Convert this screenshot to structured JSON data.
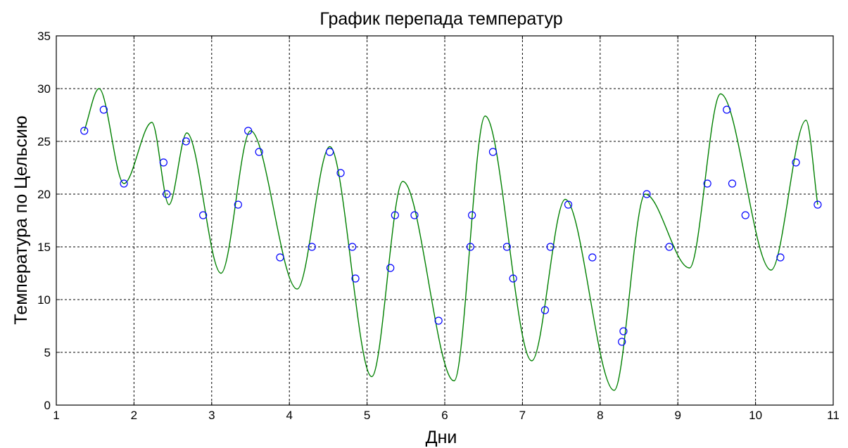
{
  "chart_data": {
    "type": "line",
    "title": "График перепада температур",
    "xlabel": "Дни",
    "ylabel": "Температура по Цельсию",
    "xlim": [
      1,
      11
    ],
    "ylim": [
      0,
      35
    ],
    "xticks": [
      1,
      2,
      3,
      4,
      5,
      6,
      7,
      8,
      9,
      10,
      11
    ],
    "yticks": [
      0,
      5,
      10,
      15,
      20,
      25,
      30,
      35
    ],
    "grid": true,
    "legend": "none",
    "colors": {
      "curve": "#008000",
      "points": "#0000ff"
    },
    "series": [
      {
        "type": "line",
        "x": [
          1.36,
          1.55,
          1.87,
          2.23,
          2.45,
          2.68,
          3.12,
          3.5,
          4.1,
          4.52,
          5.06,
          5.46,
          6.12,
          6.52,
          7.12,
          7.55,
          8.18,
          8.58,
          9.15,
          9.55,
          10.2,
          10.65,
          10.8
        ],
        "y": [
          26,
          30,
          21,
          26.8,
          19,
          25.8,
          12.5,
          26,
          11,
          24.5,
          2.7,
          21.2,
          2.3,
          27.4,
          4.2,
          19.5,
          1.4,
          20,
          13,
          29.5,
          12.8,
          27,
          19
        ]
      },
      {
        "type": "scatter",
        "x": [
          1.36,
          1.61,
          1.87,
          2.38,
          2.42,
          2.67,
          2.89,
          3.34,
          3.47,
          3.61,
          3.88,
          4.29,
          4.52,
          4.66,
          4.81,
          4.85,
          5.3,
          5.36,
          5.61,
          5.92,
          6.33,
          6.35,
          6.62,
          6.8,
          6.88,
          7.29,
          7.36,
          7.59,
          7.9,
          8.28,
          8.3,
          8.6,
          8.89,
          9.38,
          9.63,
          9.7,
          9.87,
          10.32,
          10.52,
          10.8
        ],
        "y": [
          26,
          28,
          21,
          23,
          20,
          25,
          18,
          19,
          26,
          24,
          14,
          15,
          24,
          22,
          15,
          12,
          13,
          18,
          18,
          8,
          15,
          18,
          24,
          15,
          12,
          9,
          15,
          19,
          14,
          6,
          7,
          20,
          15,
          21,
          28,
          21,
          18,
          14,
          23,
          19
        ]
      }
    ]
  }
}
